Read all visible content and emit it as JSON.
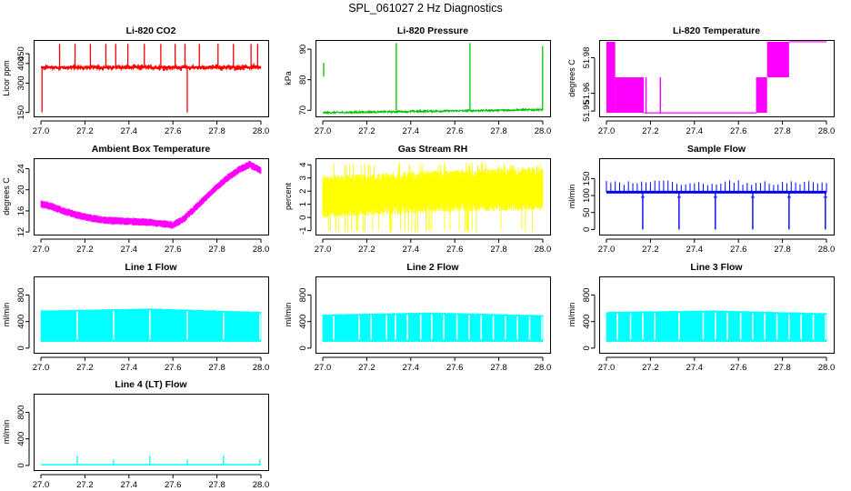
{
  "main_title": "SPL_061027  2 Hz Diagnostics",
  "chart_data": [
    {
      "id": "li820-co2",
      "type": "line",
      "title": "Li-820 CO2",
      "ylabel": "Licor ppm",
      "color": "#ff0000",
      "xlim": [
        27.0,
        28.0
      ],
      "xticks": [
        27.0,
        27.2,
        27.4,
        27.6,
        27.8,
        28.0
      ],
      "ylim": [
        130,
        520
      ],
      "yticks": [
        150,
        300,
        400,
        450
      ],
      "series": [
        {
          "name": "CO2",
          "x": [
            27.0,
            28.0
          ],
          "baseline": 380,
          "noise": 12,
          "spikes": [
            {
              "x": 27.005,
              "y": 150
            },
            {
              "x": 27.085,
              "y": 500
            },
            {
              "x": 27.155,
              "y": 500
            },
            {
              "x": 27.225,
              "y": 500
            },
            {
              "x": 27.295,
              "y": 500
            },
            {
              "x": 27.34,
              "y": 500
            },
            {
              "x": 27.395,
              "y": 500
            },
            {
              "x": 27.47,
              "y": 500
            },
            {
              "x": 27.545,
              "y": 500
            },
            {
              "x": 27.61,
              "y": 500
            },
            {
              "x": 27.655,
              "y": 500
            },
            {
              "x": 27.665,
              "y": 150
            },
            {
              "x": 27.72,
              "y": 500
            },
            {
              "x": 27.805,
              "y": 500
            },
            {
              "x": 27.875,
              "y": 500
            },
            {
              "x": 27.955,
              "y": 500
            },
            {
              "x": 27.985,
              "y": 500
            }
          ]
        }
      ]
    },
    {
      "id": "li820-pressure",
      "type": "line",
      "title": "Li-820 Pressure",
      "ylabel": "kPa",
      "color": "#00c000",
      "xlim": [
        27.0,
        28.0
      ],
      "xticks": [
        27.0,
        27.2,
        27.4,
        27.6,
        27.8,
        28.0
      ],
      "ylim": [
        68,
        93
      ],
      "yticks": [
        70,
        80,
        90
      ],
      "series": [
        {
          "name": "Pressure",
          "x": [
            27.0,
            28.0
          ],
          "baseline_start": 69.2,
          "baseline_end": 70.2,
          "noise": 0.3,
          "spikes": [
            {
              "x": 27.0,
              "y": 85.5,
              "from": 81
            },
            {
              "x": 27.33,
              "y": 92
            },
            {
              "x": 27.665,
              "y": 92
            },
            {
              "x": 27.995,
              "y": 91
            }
          ]
        }
      ]
    },
    {
      "id": "li820-temperature",
      "type": "line",
      "title": "Li-820 Temperature",
      "ylabel": "degrees C",
      "color": "#ff00ff",
      "xlim": [
        27.0,
        28.0
      ],
      "xticks": [
        27.0,
        27.2,
        27.4,
        27.6,
        27.8,
        28.0
      ],
      "ylim": [
        51.947,
        51.99
      ],
      "yticks": [
        51.95,
        51.96,
        51.98
      ],
      "series": [
        {
          "name": "Temperature",
          "levels": [
            51.949,
            51.969,
            51.989
          ],
          "segments": [
            {
              "x0": 27.0,
              "x1": 27.04,
              "lo": 51.949,
              "hi": 51.989
            },
            {
              "x0": 27.04,
              "x1": 27.17,
              "lo": 51.949,
              "hi": 51.969
            },
            {
              "x0": 27.17,
              "x1": 27.68,
              "lo": 51.949,
              "hi": 51.949
            },
            {
              "x0": 27.68,
              "x1": 27.73,
              "lo": 51.949,
              "hi": 51.969
            },
            {
              "x0": 27.73,
              "x1": 27.83,
              "lo": 51.969,
              "hi": 51.989
            },
            {
              "x0": 27.83,
              "x1": 28.0,
              "lo": 51.989,
              "hi": 51.989
            }
          ]
        }
      ]
    },
    {
      "id": "ambient-box-temperature",
      "type": "line",
      "title": "Ambient Box Temperature",
      "ylabel": "degrees C",
      "color": "#ff00ff",
      "xlim": [
        27.0,
        28.0
      ],
      "xticks": [
        27.0,
        27.2,
        27.4,
        27.6,
        27.8,
        28.0
      ],
      "ylim": [
        11.5,
        26
      ],
      "yticks": [
        12,
        16,
        20,
        24
      ],
      "series": [
        {
          "name": "Box temp",
          "x": [
            27.0,
            27.05,
            27.1,
            27.2,
            27.3,
            27.4,
            27.5,
            27.6,
            27.65,
            27.7,
            27.75,
            27.8,
            27.85,
            27.9,
            27.95,
            28.0
          ],
          "y": [
            17.3,
            16.8,
            16.0,
            14.8,
            14.2,
            14.0,
            13.8,
            13.3,
            14.5,
            16.5,
            18.5,
            20.5,
            22.3,
            23.8,
            24.8,
            23.6
          ],
          "noise": 0.6
        }
      ]
    },
    {
      "id": "gas-stream-rh",
      "type": "line",
      "title": "Gas Stream RH",
      "ylabel": "percent",
      "color": "#ffff00",
      "xlim": [
        27.0,
        28.0
      ],
      "xticks": [
        27.0,
        27.2,
        27.4,
        27.6,
        27.8,
        28.0
      ],
      "ylim": [
        -1.3,
        4.5
      ],
      "yticks": [
        -1,
        0,
        1,
        2,
        3,
        4
      ],
      "series": [
        {
          "name": "RH",
          "x": [
            27.0,
            27.5,
            28.0
          ],
          "y_lo": [
            0.2,
            0.6,
            0.8
          ],
          "y_hi": [
            2.7,
            3.1,
            3.4
          ]
        }
      ]
    },
    {
      "id": "sample-flow",
      "type": "line",
      "title": "Sample Flow",
      "ylabel": "ml/min",
      "color": "#0000ff",
      "xlim": [
        27.0,
        28.0
      ],
      "xticks": [
        27.0,
        27.2,
        27.4,
        27.6,
        27.8,
        28.0
      ],
      "ylim": [
        -15,
        210
      ],
      "yticks": [
        0,
        50,
        100,
        150
      ],
      "series": [
        {
          "name": "Sample flow",
          "x": [
            27.0,
            28.0
          ],
          "baseline": 110,
          "band": 8,
          "ripple_top": 145,
          "dips": [
            27.165,
            27.33,
            27.495,
            27.665,
            27.83,
            27.995
          ]
        }
      ]
    },
    {
      "id": "line1-flow",
      "type": "line",
      "title": "Line 1 Flow",
      "ylabel": "ml/min",
      "color": "#00ffff",
      "xlim": [
        27.0,
        28.0
      ],
      "xticks": [
        27.0,
        27.2,
        27.4,
        27.6,
        27.8,
        28.0
      ],
      "ylim": [
        -70,
        1080
      ],
      "yticks": [
        0,
        400,
        800
      ],
      "series": [
        {
          "name": "Line 1",
          "x": [
            27.0,
            27.5,
            28.0
          ],
          "y_hi": [
            560,
            590,
            540
          ],
          "y_lo": 100,
          "gaps": [
            27.165,
            27.33,
            27.495,
            27.665,
            27.83,
            27.995
          ]
        }
      ]
    },
    {
      "id": "line2-flow",
      "type": "line",
      "title": "Line 2 Flow",
      "ylabel": "ml/min",
      "color": "#00ffff",
      "xlim": [
        27.0,
        28.0
      ],
      "xticks": [
        27.0,
        27.2,
        27.4,
        27.6,
        27.8,
        28.0
      ],
      "ylim": [
        -70,
        1080
      ],
      "yticks": [
        0,
        400,
        800
      ],
      "series": [
        {
          "name": "Line 2",
          "x": [
            27.0,
            27.5,
            28.0
          ],
          "y_hi": [
            500,
            530,
            490
          ],
          "y_lo": 100,
          "gaps": [
            27.05,
            27.165,
            27.22,
            27.29,
            27.33,
            27.385,
            27.445,
            27.495,
            27.55,
            27.61,
            27.665,
            27.72,
            27.775,
            27.83,
            27.885,
            27.94,
            27.995
          ]
        }
      ]
    },
    {
      "id": "line3-flow",
      "type": "line",
      "title": "Line 3 Flow",
      "ylabel": "ml/min",
      "color": "#00ffff",
      "xlim": [
        27.0,
        28.0
      ],
      "xticks": [
        27.0,
        27.2,
        27.4,
        27.6,
        27.8,
        28.0
      ],
      "ylim": [
        -70,
        1080
      ],
      "yticks": [
        0,
        400,
        800
      ],
      "series": [
        {
          "name": "Line 3",
          "x": [
            27.0,
            27.5,
            28.0
          ],
          "y_hi": [
            540,
            560,
            520
          ],
          "y_lo": 100,
          "gaps": [
            27.05,
            27.11,
            27.165,
            27.22,
            27.33,
            27.44,
            27.495,
            27.55,
            27.61,
            27.665,
            27.72,
            27.775,
            27.83,
            27.885,
            27.94,
            27.995
          ]
        }
      ]
    },
    {
      "id": "line4-flow",
      "type": "line",
      "title": "Line 4 (LT) Flow",
      "ylabel": "ml/min",
      "color": "#00ffff",
      "xlim": [
        27.0,
        28.0
      ],
      "xticks": [
        27.0,
        27.2,
        27.4,
        27.6,
        27.8,
        28.0
      ],
      "ylim": [
        -70,
        1080
      ],
      "yticks": [
        0,
        400,
        800
      ],
      "series": [
        {
          "name": "Line 4",
          "x": [
            27.0,
            28.0
          ],
          "baseline": 12,
          "spikes": [
            {
              "x": 27.165,
              "y": 150
            },
            {
              "x": 27.33,
              "y": 90
            },
            {
              "x": 27.495,
              "y": 150
            },
            {
              "x": 27.665,
              "y": 90
            },
            {
              "x": 27.83,
              "y": 150
            },
            {
              "x": 27.995,
              "y": 90
            }
          ]
        }
      ]
    }
  ]
}
